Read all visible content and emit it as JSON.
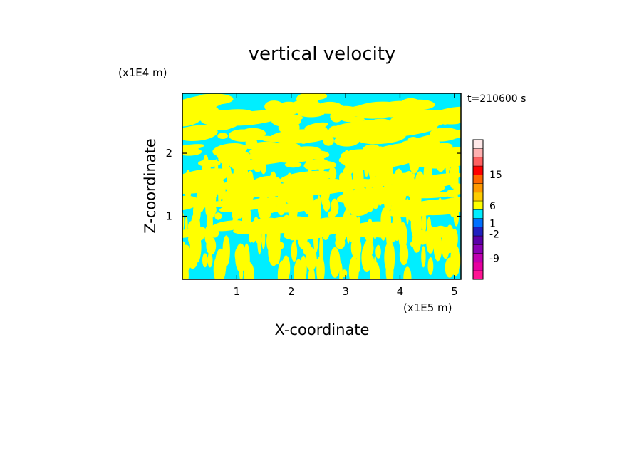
{
  "chart_data": {
    "type": "heatmap",
    "title": "vertical velocity",
    "xlabel": "X-coordinate",
    "ylabel": "Z-coordinate",
    "x_unit": "(x1E5 m)",
    "y_unit": "(x1E4 m)",
    "time_label": "t=210600 s",
    "xlim": [
      0,
      5.12
    ],
    "ylim": [
      0,
      2.95
    ],
    "x_ticks": [
      1,
      2,
      3,
      4,
      5
    ],
    "y_ticks": [
      1,
      2
    ],
    "x_tick_labels": [
      "1",
      "2",
      "3",
      "4",
      "5"
    ],
    "y_tick_labels": [
      "1",
      "2"
    ],
    "field_levels": [
      {
        "range": "below 0",
        "color": "#00eeff"
      },
      {
        "range": "above 0",
        "color": "#ffff00"
      }
    ],
    "colorbar": {
      "labels": [
        "15",
        "6",
        "1",
        "-2",
        "-9"
      ],
      "label_positions": [
        15,
        6,
        1,
        -2,
        -9
      ],
      "bands": [
        {
          "color": "#ff1493"
        },
        {
          "color": "#e600a0"
        },
        {
          "color": "#c000b0"
        },
        {
          "color": "#8a00b4"
        },
        {
          "color": "#5a00a8"
        },
        {
          "color": "#2020c0"
        },
        {
          "color": "#0070ff"
        },
        {
          "color": "#00eeff"
        },
        {
          "color": "#ffff00"
        },
        {
          "color": "#ffcc00"
        },
        {
          "color": "#ff9900"
        },
        {
          "color": "#ff6600"
        },
        {
          "color": "#ff0000"
        },
        {
          "color": "#ff6060"
        },
        {
          "color": "#ffb0b0"
        },
        {
          "color": "#ffe8e8"
        }
      ]
    }
  }
}
